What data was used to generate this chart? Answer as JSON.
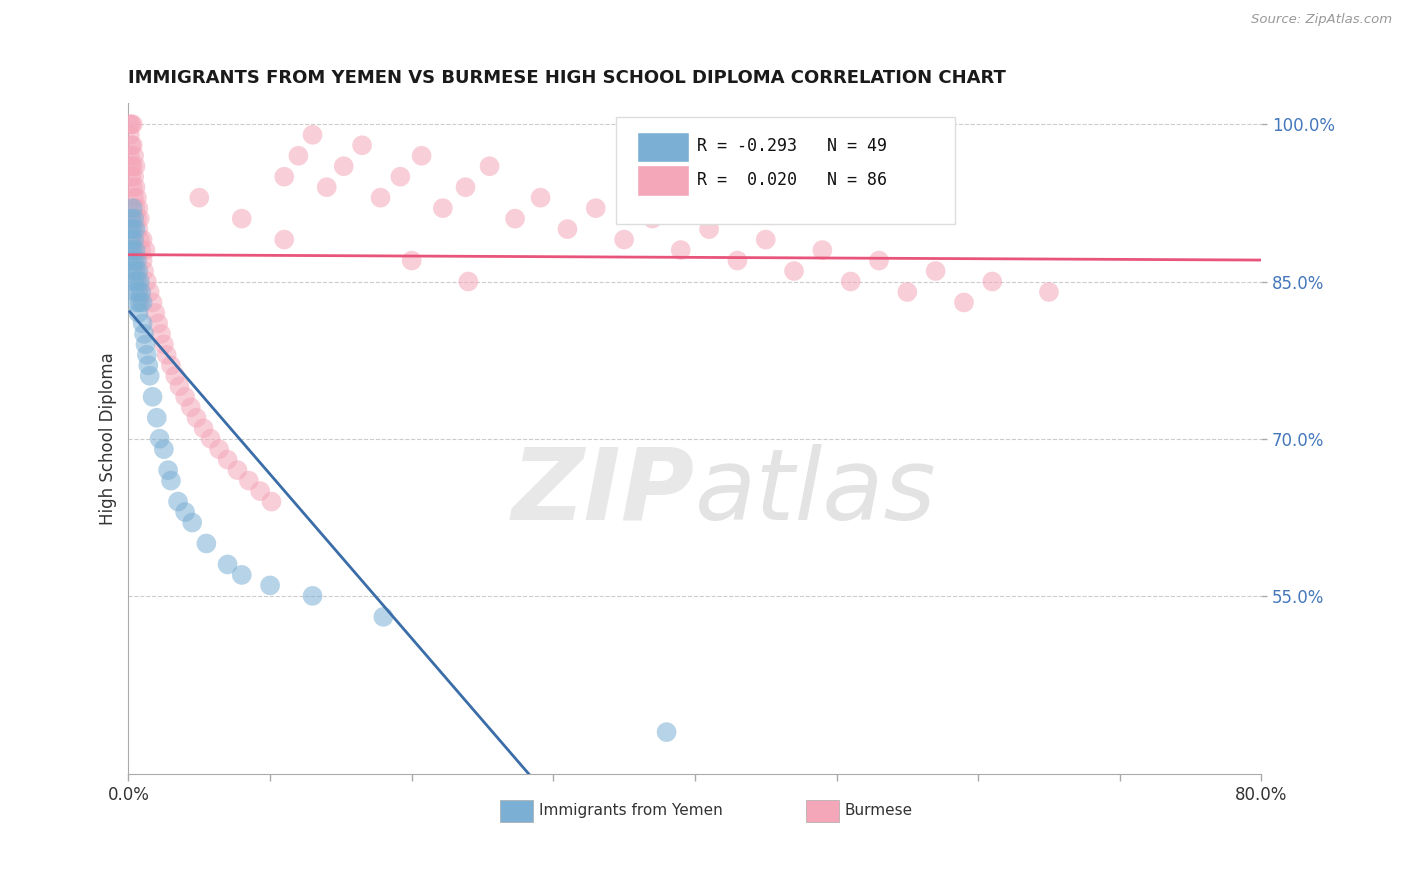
{
  "title": "IMMIGRANTS FROM YEMEN VS BURMESE HIGH SCHOOL DIPLOMA CORRELATION CHART",
  "source": "Source: ZipAtlas.com",
  "xlabel_blue": "Immigrants from Yemen",
  "xlabel_pink": "Burmese",
  "ylabel": "High School Diploma",
  "xlim": [
    0.0,
    0.8
  ],
  "ylim": [
    0.38,
    1.02
  ],
  "xticks": [
    0.0,
    0.1,
    0.2,
    0.3,
    0.4,
    0.5,
    0.6,
    0.7,
    0.8
  ],
  "xticklabels": [
    "0.0%",
    "",
    "",
    "",
    "",
    "",
    "",
    "",
    "80.0%"
  ],
  "yticks": [
    0.55,
    0.7,
    0.85,
    1.0
  ],
  "yticklabels": [
    "55.0%",
    "70.0%",
    "85.0%",
    "100.0%"
  ],
  "blue_r": "-0.293",
  "blue_n": "49",
  "pink_r": "0.020",
  "pink_n": "86",
  "blue_color": "#7BAFD4",
  "pink_color": "#F4A7B9",
  "blue_line_color": "#3B6EA8",
  "pink_line_color": "#E8547A",
  "blue_scatter_x": [
    0.001,
    0.001,
    0.002,
    0.002,
    0.002,
    0.003,
    0.003,
    0.003,
    0.003,
    0.004,
    0.004,
    0.004,
    0.004,
    0.005,
    0.005,
    0.005,
    0.005,
    0.006,
    0.006,
    0.006,
    0.007,
    0.007,
    0.007,
    0.008,
    0.008,
    0.009,
    0.01,
    0.01,
    0.011,
    0.012,
    0.013,
    0.014,
    0.015,
    0.017,
    0.02,
    0.022,
    0.025,
    0.028,
    0.03,
    0.035,
    0.04,
    0.045,
    0.055,
    0.07,
    0.08,
    0.1,
    0.13,
    0.18,
    0.38
  ],
  "blue_scatter_y": [
    0.88,
    0.9,
    0.87,
    0.89,
    0.91,
    0.86,
    0.88,
    0.9,
    0.92,
    0.85,
    0.87,
    0.89,
    0.91,
    0.84,
    0.86,
    0.88,
    0.9,
    0.83,
    0.85,
    0.87,
    0.82,
    0.84,
    0.86,
    0.83,
    0.85,
    0.84,
    0.81,
    0.83,
    0.8,
    0.79,
    0.78,
    0.77,
    0.76,
    0.74,
    0.72,
    0.7,
    0.69,
    0.67,
    0.66,
    0.64,
    0.63,
    0.62,
    0.6,
    0.58,
    0.57,
    0.56,
    0.55,
    0.53,
    0.42
  ],
  "pink_scatter_x": [
    0.001,
    0.001,
    0.001,
    0.002,
    0.002,
    0.002,
    0.002,
    0.003,
    0.003,
    0.003,
    0.003,
    0.004,
    0.004,
    0.004,
    0.005,
    0.005,
    0.005,
    0.006,
    0.006,
    0.007,
    0.007,
    0.008,
    0.008,
    0.009,
    0.01,
    0.01,
    0.011,
    0.012,
    0.013,
    0.015,
    0.017,
    0.019,
    0.021,
    0.023,
    0.025,
    0.027,
    0.03,
    0.033,
    0.036,
    0.04,
    0.044,
    0.048,
    0.053,
    0.058,
    0.064,
    0.07,
    0.077,
    0.085,
    0.093,
    0.101,
    0.11,
    0.12,
    0.13,
    0.14,
    0.152,
    0.165,
    0.178,
    0.192,
    0.207,
    0.222,
    0.238,
    0.255,
    0.273,
    0.291,
    0.31,
    0.33,
    0.35,
    0.37,
    0.39,
    0.41,
    0.43,
    0.45,
    0.47,
    0.49,
    0.51,
    0.53,
    0.55,
    0.57,
    0.59,
    0.61,
    0.05,
    0.08,
    0.11,
    0.2,
    0.24,
    0.65
  ],
  "pink_scatter_y": [
    0.97,
    0.99,
    1.0,
    0.96,
    0.98,
    1.0,
    0.95,
    0.94,
    0.96,
    0.98,
    1.0,
    0.93,
    0.95,
    0.97,
    0.92,
    0.94,
    0.96,
    0.91,
    0.93,
    0.9,
    0.92,
    0.89,
    0.91,
    0.88,
    0.87,
    0.89,
    0.86,
    0.88,
    0.85,
    0.84,
    0.83,
    0.82,
    0.81,
    0.8,
    0.79,
    0.78,
    0.77,
    0.76,
    0.75,
    0.74,
    0.73,
    0.72,
    0.71,
    0.7,
    0.69,
    0.68,
    0.67,
    0.66,
    0.65,
    0.64,
    0.95,
    0.97,
    0.99,
    0.94,
    0.96,
    0.98,
    0.93,
    0.95,
    0.97,
    0.92,
    0.94,
    0.96,
    0.91,
    0.93,
    0.9,
    0.92,
    0.89,
    0.91,
    0.88,
    0.9,
    0.87,
    0.89,
    0.86,
    0.88,
    0.85,
    0.87,
    0.84,
    0.86,
    0.83,
    0.85,
    0.93,
    0.91,
    0.89,
    0.87,
    0.85,
    0.84
  ],
  "legend_r_color": "#2255AA",
  "legend_n_color": "#2255AA"
}
